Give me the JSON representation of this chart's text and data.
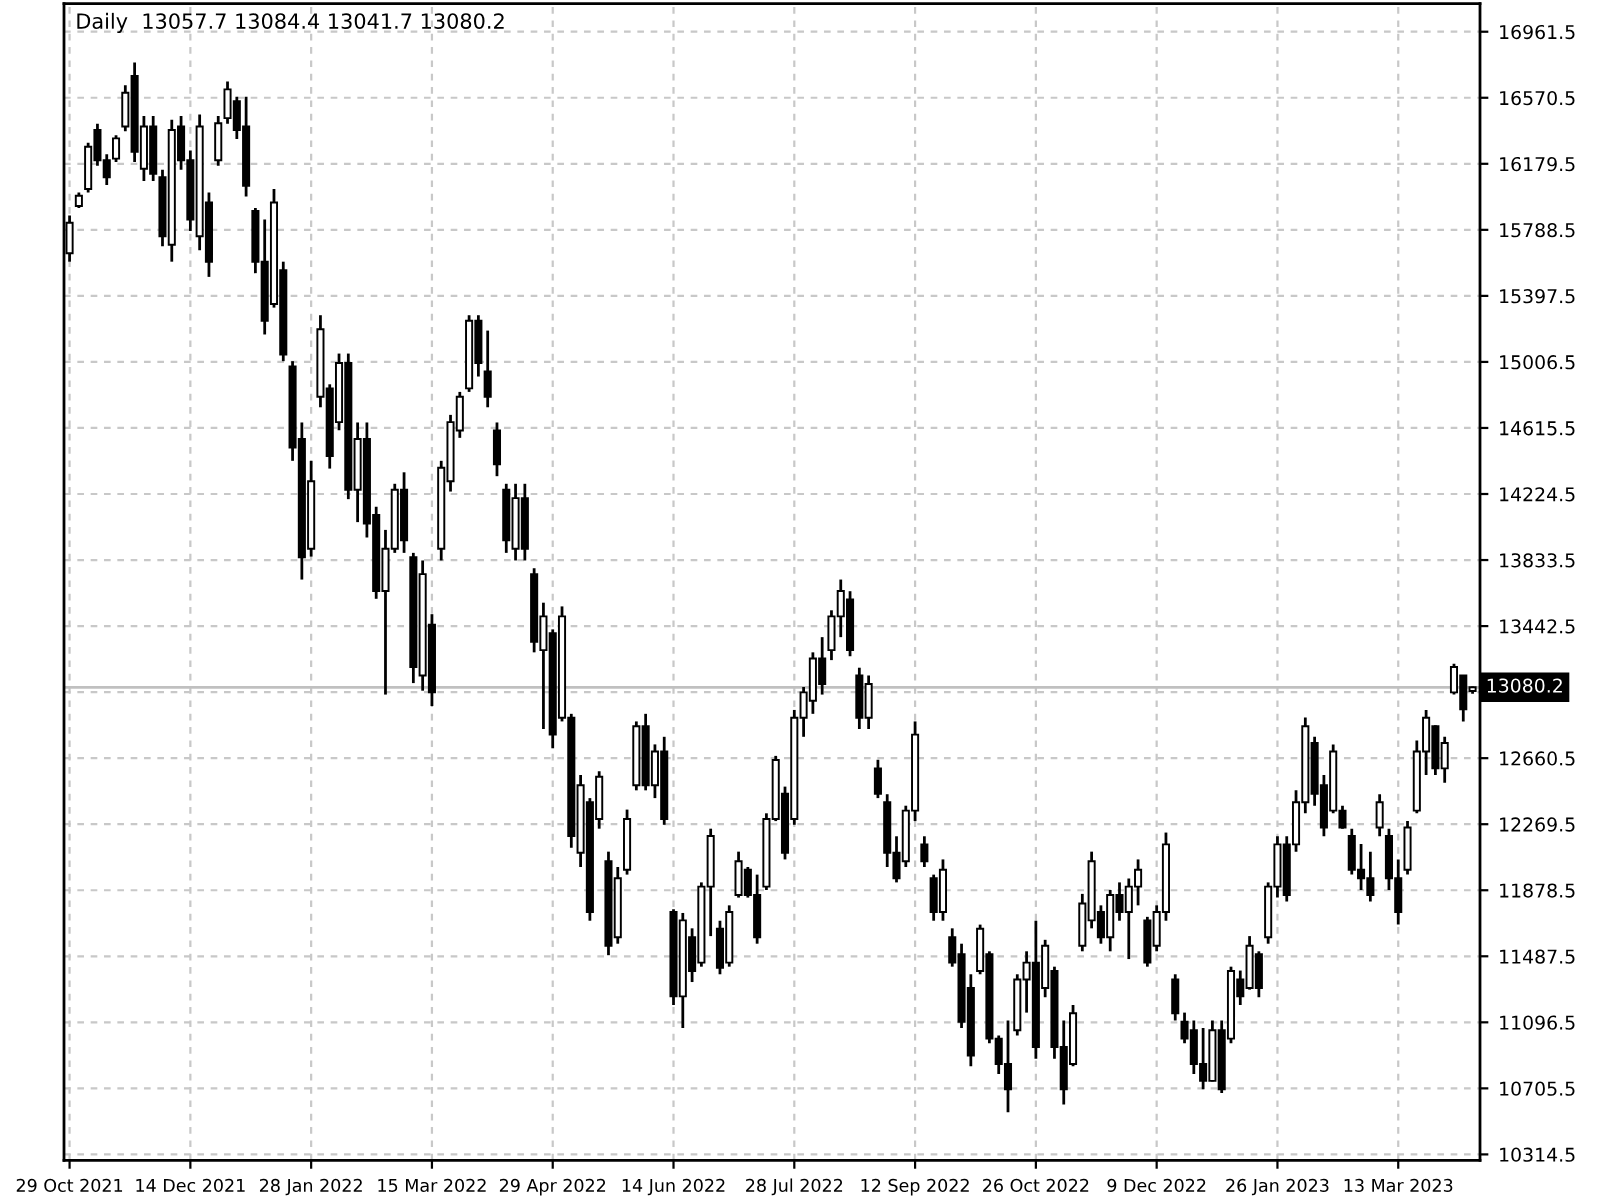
{
  "chart_data": {
    "type": "candlestick",
    "title": "Daily  13057.7 13084.4 13041.7 13080.2",
    "categories": [
      "29 Oct 2021",
      null,
      null,
      null,
      null,
      null,
      null,
      null,
      null,
      null,
      null,
      null,
      null,
      "14 Dec 2021",
      null,
      null,
      null,
      null,
      null,
      null,
      null,
      null,
      null,
      null,
      null,
      null,
      "28 Jan 2022",
      null,
      null,
      null,
      null,
      null,
      null,
      null,
      null,
      null,
      null,
      null,
      null,
      "15 Mar 2022",
      null,
      null,
      null,
      null,
      null,
      null,
      null,
      null,
      null,
      null,
      null,
      null,
      "29 Apr 2022",
      null,
      null,
      null,
      null,
      null,
      null,
      null,
      null,
      null,
      null,
      null,
      null,
      "14 Jun 2022",
      null,
      null,
      null,
      null,
      null,
      null,
      null,
      null,
      null,
      null,
      null,
      null,
      "28 Jul 2022",
      null,
      null,
      null,
      null,
      null,
      null,
      null,
      null,
      null,
      null,
      null,
      null,
      "12 Sep 2022",
      null,
      null,
      null,
      null,
      null,
      null,
      null,
      null,
      null,
      null,
      null,
      null,
      "26 Oct 2022",
      null,
      null,
      null,
      null,
      null,
      null,
      null,
      null,
      null,
      null,
      null,
      null,
      "9 Dec 2022",
      null,
      null,
      null,
      null,
      null,
      null,
      null,
      null,
      null,
      null,
      null,
      null,
      "26 Jan 2023",
      null,
      null,
      null,
      null,
      null,
      null,
      null,
      null,
      null,
      null,
      null,
      null,
      "13 Mar 2023",
      null,
      null,
      null,
      null,
      null,
      null,
      null,
      null
    ],
    "ohlc": [
      [
        15650,
        15873,
        15600,
        15830
      ],
      [
        15930,
        16009,
        15918,
        15990
      ],
      [
        16030,
        16304,
        16009,
        16280
      ],
      [
        16380,
        16417,
        16168,
        16200
      ],
      [
        16200,
        16236,
        16054,
        16100
      ],
      [
        16210,
        16349,
        16190,
        16330
      ],
      [
        16400,
        16644,
        16372,
        16600
      ],
      [
        16700,
        16780,
        16190,
        16250
      ],
      [
        16150,
        16462,
        16077,
        16400
      ],
      [
        16400,
        16462,
        16077,
        16120
      ],
      [
        16100,
        16145,
        15691,
        15750
      ],
      [
        15700,
        16440,
        15600,
        16380
      ],
      [
        16400,
        16462,
        16145,
        16200
      ],
      [
        16200,
        16258,
        15782,
        15850
      ],
      [
        15750,
        16472,
        15668,
        16400
      ],
      [
        15950,
        16009,
        15510,
        15600
      ],
      [
        16200,
        16462,
        16168,
        16420
      ],
      [
        16450,
        16667,
        16417,
        16620
      ],
      [
        16550,
        16576,
        16326,
        16380
      ],
      [
        16400,
        16576,
        15986,
        16050
      ],
      [
        15900,
        15918,
        15532,
        15600
      ],
      [
        15600,
        15850,
        15169,
        15250
      ],
      [
        15350,
        16031,
        15328,
        15950
      ],
      [
        15550,
        15600,
        15011,
        15050
      ],
      [
        14980,
        15011,
        14421,
        14500
      ],
      [
        14550,
        14648,
        13718,
        13850
      ],
      [
        13900,
        14421,
        13854,
        14300
      ],
      [
        14800,
        15283,
        14738,
        15200
      ],
      [
        14850,
        14874,
        14375,
        14450
      ],
      [
        14650,
        15056,
        14602,
        15000
      ],
      [
        15000,
        15056,
        14194,
        14250
      ],
      [
        14250,
        14648,
        14058,
        14550
      ],
      [
        14550,
        14648,
        13967,
        14050
      ],
      [
        14100,
        14149,
        13604,
        13650
      ],
      [
        13650,
        14012,
        13037,
        13900
      ],
      [
        13900,
        14285,
        13876,
        14250
      ],
      [
        14250,
        14353,
        13876,
        13950
      ],
      [
        13850,
        13876,
        13105,
        13200
      ],
      [
        13150,
        13831,
        13060,
        13750
      ],
      [
        13450,
        13513,
        12969,
        13050
      ],
      [
        13900,
        14421,
        13831,
        14380
      ],
      [
        14300,
        14693,
        14239,
        14650
      ],
      [
        14600,
        14829,
        14557,
        14800
      ],
      [
        14850,
        15283,
        14829,
        15250
      ],
      [
        15250,
        15283,
        14920,
        15000
      ],
      [
        14950,
        15192,
        14738,
        14800
      ],
      [
        14600,
        14648,
        14330,
        14400
      ],
      [
        14250,
        14285,
        13876,
        13950
      ],
      [
        13900,
        14285,
        13831,
        14200
      ],
      [
        14200,
        14285,
        13831,
        13900
      ],
      [
        13750,
        13785,
        13287,
        13350
      ],
      [
        13300,
        13581,
        12833,
        13500
      ],
      [
        13400,
        13423,
        12719,
        12800
      ],
      [
        12900,
        13559,
        12878,
        13500
      ],
      [
        12900,
        12923,
        12130,
        12200
      ],
      [
        12100,
        12561,
        12016,
        12500
      ],
      [
        12400,
        12424,
        11698,
        11750
      ],
      [
        12300,
        12583,
        12243,
        12550
      ],
      [
        12050,
        12107,
        11494,
        11550
      ],
      [
        11600,
        12016,
        11562,
        11950
      ],
      [
        12000,
        12356,
        11971,
        12300
      ],
      [
        12500,
        12878,
        12470,
        12850
      ],
      [
        12850,
        12923,
        12470,
        12500
      ],
      [
        12500,
        12742,
        12424,
        12700
      ],
      [
        12700,
        12787,
        12266,
        12300
      ],
      [
        11750,
        11766,
        11199,
        11250
      ],
      [
        11250,
        11744,
        11063,
        11700
      ],
      [
        11600,
        11653,
        11335,
        11400
      ],
      [
        11450,
        11925,
        11426,
        11900
      ],
      [
        11900,
        12243,
        11607,
        12200
      ],
      [
        11650,
        11698,
        11381,
        11420
      ],
      [
        11450,
        11789,
        11426,
        11750
      ],
      [
        11850,
        12107,
        11835,
        12050
      ],
      [
        12000,
        12016,
        11835,
        11850
      ],
      [
        11850,
        11971,
        11562,
        11600
      ],
      [
        11900,
        12334,
        11880,
        12300
      ],
      [
        12300,
        12674,
        12288,
        12650
      ],
      [
        12450,
        12492,
        12061,
        12100
      ],
      [
        12300,
        12946,
        12266,
        12900
      ],
      [
        12900,
        13082,
        12787,
        13050
      ],
      [
        13000,
        13287,
        12923,
        13250
      ],
      [
        13250,
        13377,
        13037,
        13100
      ],
      [
        13300,
        13536,
        13241,
        13500
      ],
      [
        13500,
        13718,
        13377,
        13650
      ],
      [
        13600,
        13649,
        13264,
        13300
      ],
      [
        13150,
        13196,
        12833,
        12900
      ],
      [
        12900,
        13150,
        12833,
        13100
      ],
      [
        12600,
        12651,
        12424,
        12450
      ],
      [
        12400,
        12447,
        12016,
        12100
      ],
      [
        12100,
        12198,
        11925,
        11950
      ],
      [
        12050,
        12379,
        12016,
        12350
      ],
      [
        12350,
        12878,
        12288,
        12800
      ],
      [
        12150,
        12198,
        12016,
        12050
      ],
      [
        11950,
        11971,
        11698,
        11750
      ],
      [
        11750,
        12061,
        11698,
        12000
      ],
      [
        11600,
        11653,
        11426,
        11450
      ],
      [
        11500,
        11562,
        11063,
        11100
      ],
      [
        11300,
        11381,
        10836,
        10900
      ],
      [
        11400,
        11675,
        11381,
        11650
      ],
      [
        11500,
        11517,
        10972,
        11000
      ],
      [
        11000,
        11018,
        10791,
        10850
      ],
      [
        10850,
        11108,
        10564,
        10700
      ],
      [
        11050,
        11381,
        11018,
        11350
      ],
      [
        11350,
        11517,
        11154,
        11450
      ],
      [
        11450,
        11698,
        10881,
        10950
      ],
      [
        11300,
        11585,
        11245,
        11550
      ],
      [
        11400,
        11426,
        10881,
        10950
      ],
      [
        10950,
        11108,
        10610,
        10700
      ],
      [
        10850,
        11199,
        10836,
        11150
      ],
      [
        11550,
        11857,
        11517,
        11800
      ],
      [
        11700,
        12107,
        11653,
        12050
      ],
      [
        11750,
        11789,
        11562,
        11600
      ],
      [
        11600,
        11880,
        11517,
        11850
      ],
      [
        11850,
        11925,
        11698,
        11750
      ],
      [
        11750,
        11948,
        11471,
        11900
      ],
      [
        11900,
        12061,
        11789,
        12000
      ],
      [
        11700,
        11721,
        11426,
        11450
      ],
      [
        11550,
        11789,
        11517,
        11750
      ],
      [
        11750,
        12220,
        11698,
        12150
      ],
      [
        11350,
        11381,
        11108,
        11150
      ],
      [
        11100,
        11154,
        10972,
        11000
      ],
      [
        11050,
        11108,
        10791,
        10850
      ],
      [
        10850,
        11063,
        10700,
        10750
      ],
      [
        10750,
        11108,
        10746,
        11050
      ],
      [
        11050,
        11108,
        10678,
        10700
      ],
      [
        11000,
        11426,
        10972,
        11400
      ],
      [
        11350,
        11403,
        11199,
        11250
      ],
      [
        11300,
        11607,
        11290,
        11550
      ],
      [
        11500,
        11517,
        11245,
        11300
      ],
      [
        11600,
        11925,
        11562,
        11900
      ],
      [
        11900,
        12198,
        11835,
        12150
      ],
      [
        12150,
        12198,
        11812,
        11850
      ],
      [
        12150,
        12470,
        12107,
        12400
      ],
      [
        12400,
        12901,
        12334,
        12850
      ],
      [
        12750,
        12787,
        12379,
        12450
      ],
      [
        12500,
        12561,
        12198,
        12250
      ],
      [
        12350,
        12742,
        12334,
        12700
      ],
      [
        12350,
        12379,
        12243,
        12250
      ],
      [
        12200,
        12243,
        11971,
        12000
      ],
      [
        12000,
        12152,
        11880,
        11950
      ],
      [
        11950,
        12107,
        11812,
        11850
      ],
      [
        12250,
        12447,
        12198,
        12400
      ],
      [
        12200,
        12243,
        11880,
        11950
      ],
      [
        11950,
        12061,
        11675,
        11750
      ],
      [
        12000,
        12288,
        11971,
        12250
      ],
      [
        12350,
        12765,
        12334,
        12700
      ],
      [
        12700,
        12946,
        12561,
        12900
      ],
      [
        12850,
        12855,
        12561,
        12600
      ],
      [
        12600,
        12787,
        12515,
        12750
      ],
      [
        13050,
        13219,
        13037,
        13200
      ],
      [
        13150,
        13150,
        12878,
        12950
      ],
      [
        13057.7,
        13084.4,
        13041.7,
        13080.2
      ]
    ],
    "color": "#000000",
    "ylim": [
      10279,
      17128
    ],
    "yticks": [
      10314.5,
      10705.5,
      11096.5,
      11487.5,
      11878.5,
      12269.5,
      12660.5,
      {
        "value": 13051.5,
        "label": null
      },
      13442.5,
      13833.5,
      14224.5,
      14615.5,
      15006.5,
      15397.5,
      15788.5,
      16179.5,
      16570.5,
      16961.5
    ],
    "ref_lines": [
      {
        "axis": "y",
        "value": 13080.2,
        "label": "13080.2",
        "color": "#c0c0c0"
      }
    ],
    "grid": true
  }
}
